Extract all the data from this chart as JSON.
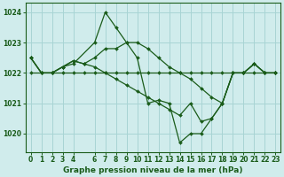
{
  "title": "Graphe pression niveau de la mer (hPa)",
  "background_color": "#d0ecec",
  "grid_color": "#a8d4d4",
  "line_color": "#1a5c1a",
  "xlim": [
    -0.5,
    23.5
  ],
  "ylim": [
    1019.4,
    1024.3
  ],
  "yticks": [
    1020,
    1021,
    1022,
    1023,
    1024
  ],
  "xticks": [
    0,
    1,
    2,
    3,
    4,
    6,
    7,
    8,
    9,
    10,
    11,
    12,
    13,
    14,
    15,
    16,
    17,
    18,
    19,
    20,
    21,
    22,
    23
  ],
  "x_values": [
    0,
    1,
    2,
    3,
    4,
    5,
    6,
    7,
    8,
    9,
    10,
    11,
    12,
    13,
    14,
    15,
    16,
    17,
    18,
    19,
    20,
    21,
    22,
    23
  ],
  "series": [
    {
      "x": [
        0,
        1,
        2,
        3,
        4,
        5,
        6,
        7,
        8,
        9,
        10,
        11,
        12,
        13,
        14,
        15,
        16,
        17,
        18,
        19,
        20,
        21,
        22,
        23
      ],
      "y": [
        1022.0,
        1022.0,
        1022.0,
        1022.0,
        1022.0,
        1022.0,
        1022.0,
        1022.0,
        1022.0,
        1022.0,
        1022.0,
        1022.0,
        1022.0,
        1022.0,
        1022.0,
        1022.0,
        1022.0,
        1022.0,
        1022.0,
        1022.0,
        1022.0,
        1022.0,
        1022.0,
        1022.0
      ],
      "marker": "D",
      "linestyle": "-"
    },
    {
      "x": [
        0,
        1,
        2,
        3,
        4,
        6,
        7,
        8,
        9,
        10,
        11,
        12,
        13,
        14,
        15,
        16,
        17,
        18,
        19,
        20,
        21,
        22,
        23
      ],
      "y": [
        1022.5,
        1022.0,
        1022.0,
        1022.2,
        1022.3,
        1023.0,
        1024.0,
        1023.5,
        1023.0,
        1022.5,
        1021.0,
        1021.1,
        1021.0,
        1019.7,
        1020.0,
        1020.0,
        1020.5,
        1021.0,
        1022.0,
        1022.0,
        1022.3,
        1022.0,
        1022.0
      ],
      "marker": "D",
      "linestyle": "-"
    },
    {
      "x": [
        0,
        1,
        2,
        3,
        4,
        5,
        6,
        7,
        8,
        9,
        10,
        11,
        12,
        13,
        14,
        15,
        16,
        17,
        18,
        19,
        20,
        21,
        22,
        23
      ],
      "y": [
        1022.5,
        1022.0,
        1022.0,
        1022.2,
        1022.4,
        1022.3,
        1022.5,
        1022.8,
        1022.8,
        1023.0,
        1023.0,
        1022.8,
        1022.5,
        1022.2,
        1022.0,
        1021.8,
        1021.5,
        1021.2,
        1021.0,
        1022.0,
        1022.0,
        1022.3,
        1022.0,
        1022.0
      ],
      "marker": "D",
      "linestyle": "-"
    },
    {
      "x": [
        0,
        1,
        2,
        3,
        4,
        5,
        6,
        7,
        8,
        9,
        10,
        11,
        12,
        13,
        14,
        15,
        16,
        17,
        18,
        19,
        20,
        21,
        22,
        23
      ],
      "y": [
        1022.5,
        1022.0,
        1022.0,
        1022.2,
        1022.4,
        1022.3,
        1022.2,
        1022.0,
        1021.8,
        1021.6,
        1021.4,
        1021.2,
        1021.0,
        1020.8,
        1020.6,
        1021.0,
        1020.4,
        1020.5,
        1021.0,
        1022.0,
        1022.0,
        1022.3,
        1022.0,
        1022.0
      ],
      "marker": "D",
      "linestyle": "-"
    }
  ],
  "title_fontsize": 6.5,
  "tick_fontsize": 5.5
}
